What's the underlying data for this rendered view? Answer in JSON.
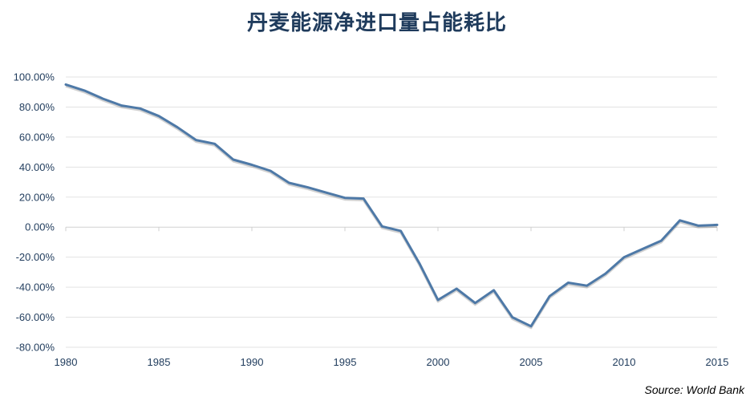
{
  "chart_data": {
    "type": "line",
    "title": "丹麦能源净进口量占能耗比",
    "source": "Source: World Bank",
    "x": [
      1980,
      1981,
      1982,
      1983,
      1984,
      1985,
      1986,
      1987,
      1988,
      1989,
      1990,
      1991,
      1992,
      1993,
      1994,
      1995,
      1996,
      1997,
      1998,
      1999,
      2000,
      2001,
      2002,
      2003,
      2004,
      2005,
      2006,
      2007,
      2008,
      2009,
      2010,
      2011,
      2012,
      2013,
      2014,
      2015
    ],
    "series": [
      {
        "values": [
          95,
          91,
          85.5,
          81,
          79,
          74,
          66.5,
          58,
          55.5,
          45,
          41.5,
          37.5,
          29.5,
          26.5,
          23,
          19.5,
          19,
          0.5,
          -2.5,
          -24,
          -48.5,
          -41,
          -50.5,
          -42,
          -60,
          -66,
          -46,
          -37,
          -39,
          -31,
          -20,
          -14.5,
          -9,
          4.5,
          1,
          1.5
        ],
        "color": "#4e79a7"
      }
    ],
    "xticks": [
      1980,
      1985,
      1990,
      1995,
      2000,
      2005,
      2010,
      2015
    ],
    "yticks": [
      "100.00%",
      "80.00%",
      "60.00%",
      "40.00%",
      "20.00%",
      "0.00%",
      "-20.00%",
      "-40.00%",
      "-60.00%",
      "-80.00%"
    ],
    "ylim": [
      -80,
      100
    ],
    "xlim": [
      1980,
      2015
    ],
    "grid": true
  }
}
